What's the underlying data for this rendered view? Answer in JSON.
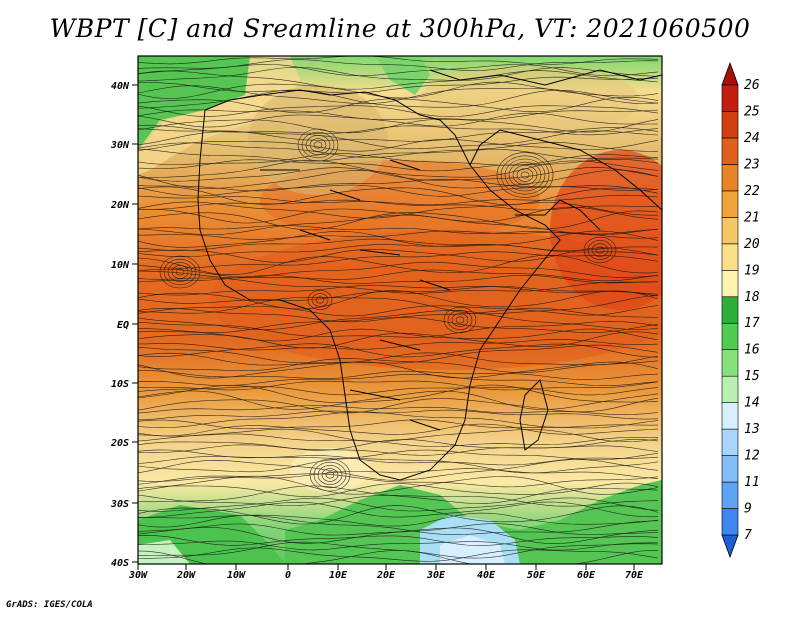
{
  "title": "WBPT [C] and Sreamline at 300hPa, VT: 2021060500",
  "footer": "GrADS: IGES/COLA",
  "map": {
    "lon_labels": [
      "30W",
      "20W",
      "10W",
      "0",
      "10E",
      "20E",
      "30E",
      "40E",
      "50E",
      "60E",
      "70E"
    ],
    "lat_labels": [
      "40N",
      "30N",
      "20N",
      "10N",
      "EQ",
      "10S",
      "20S",
      "30S",
      "40S"
    ]
  },
  "colorbar": {
    "levels": [
      "7",
      "9",
      "11",
      "12",
      "13",
      "14",
      "15",
      "16",
      "17",
      "18",
      "19",
      "20",
      "21",
      "22",
      "23",
      "24",
      "25",
      "26"
    ],
    "colors": [
      "#1f5fd6",
      "#3f86ee",
      "#5fa3f5",
      "#82bdf7",
      "#a9d5fa",
      "#d8efff",
      "#b8f0b0",
      "#86e07c",
      "#52cb52",
      "#2fae3a",
      "#fff3ad",
      "#fbe089",
      "#f8c765",
      "#f0a33a",
      "#e88424",
      "#e0601c",
      "#d24012",
      "#c21f0e",
      "#a8100a"
    ]
  }
}
